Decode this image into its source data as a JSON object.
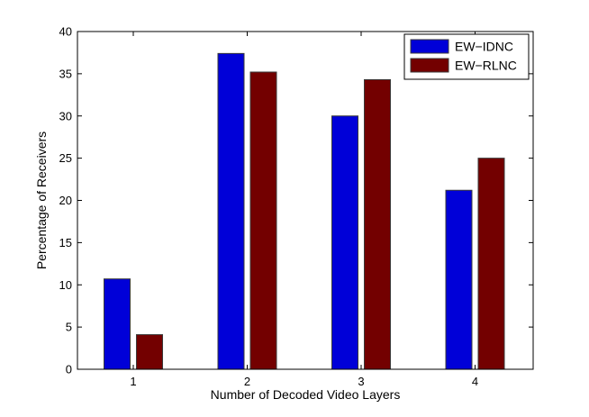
{
  "chart_data": {
    "type": "bar",
    "categories": [
      "1",
      "2",
      "3",
      "4"
    ],
    "series": [
      {
        "name": "EW−IDNC",
        "values": [
          10.7,
          37.4,
          30.0,
          21.2
        ],
        "color": "#0000d8"
      },
      {
        "name": "EW−RLNC",
        "values": [
          4.1,
          35.2,
          34.3,
          25.0
        ],
        "color": "#730000"
      }
    ],
    "xlabel": "Number of Decoded Video Layers",
    "ylabel": "Percentage of Receivers",
    "ylim": [
      0,
      40
    ],
    "yticks": [
      0,
      5,
      10,
      15,
      20,
      25,
      30,
      35,
      40
    ],
    "grid": false,
    "legend_position": "top-right"
  }
}
